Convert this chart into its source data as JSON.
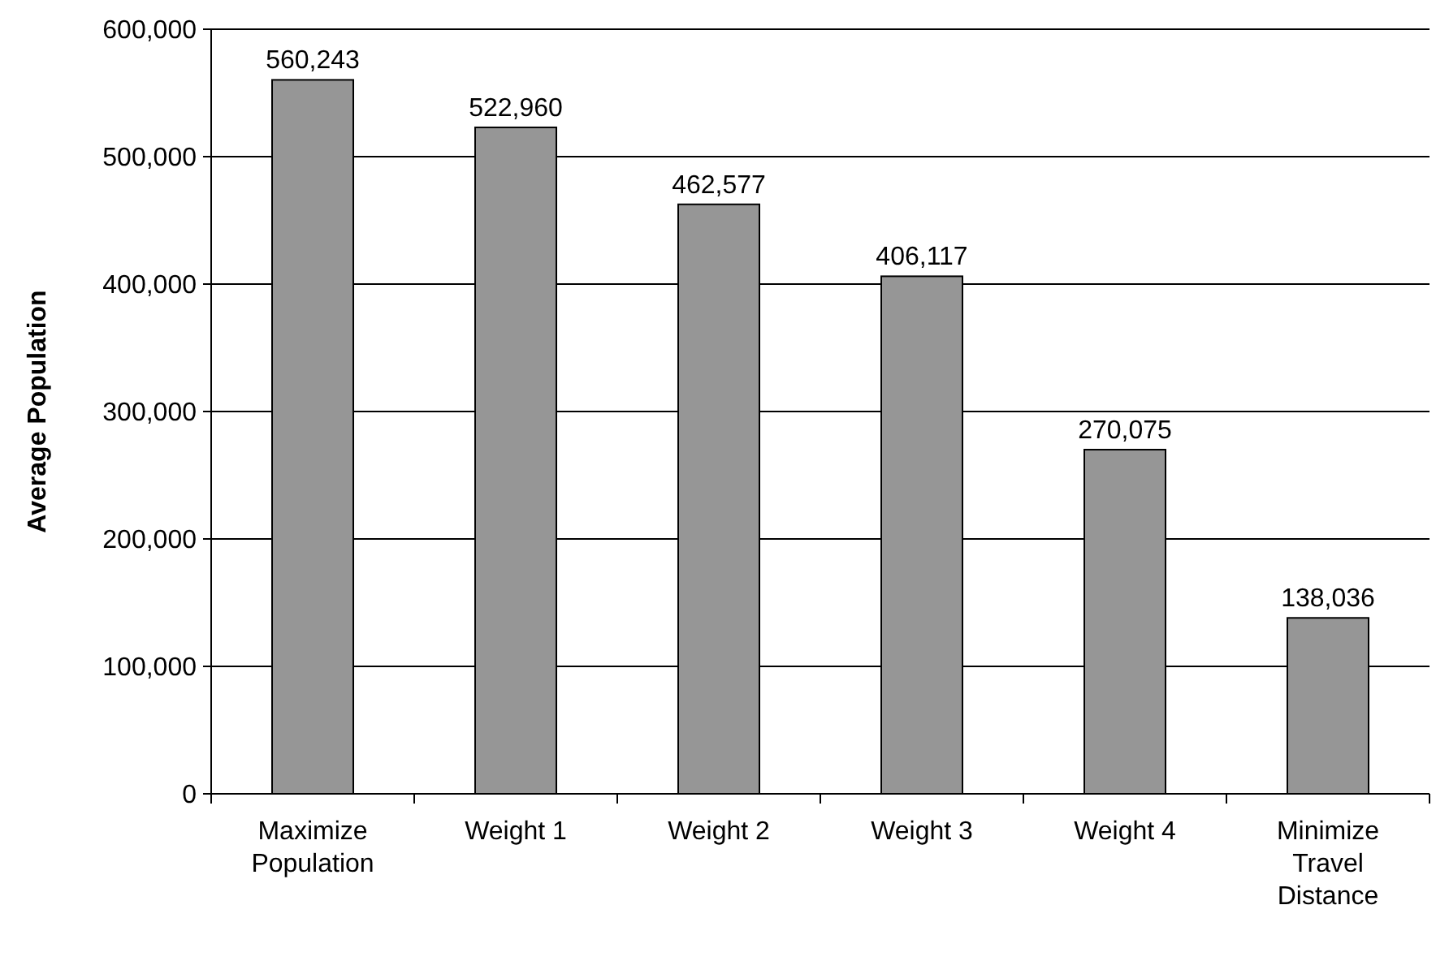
{
  "chart_data": {
    "type": "bar",
    "ylabel": "Average Population",
    "categories": [
      "Maximize Population",
      "Weight 1",
      "Weight 2",
      "Weight 3",
      "Weight 4",
      "Minimize Travel Distance"
    ],
    "values": [
      560243,
      522960,
      462577,
      406117,
      270075,
      138036
    ],
    "color": "#969696",
    "ylim": [
      0,
      600000
    ],
    "yticks": [
      {
        "value": 0,
        "label": "0"
      },
      {
        "value": 100000,
        "label": "100,000"
      },
      {
        "value": 200000,
        "label": "200,000"
      },
      {
        "value": 300000,
        "label": "300,000"
      },
      {
        "value": 400000,
        "label": "400,000"
      },
      {
        "value": 500000,
        "label": "500,000"
      },
      {
        "value": 600000,
        "label": "600,000"
      }
    ],
    "value_labels": [
      "560,243",
      "522,960",
      "462,577",
      "406,117",
      "270,075",
      "138,036"
    ],
    "grid": "y"
  }
}
